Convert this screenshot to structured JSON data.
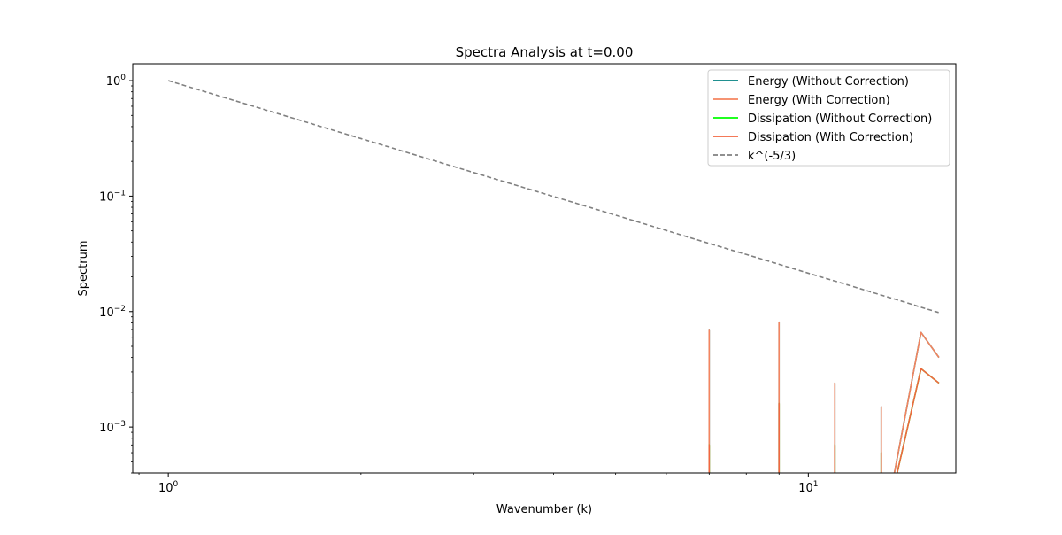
{
  "chart_data": {
    "type": "line",
    "title": "Spectra Analysis at t=0.00",
    "xlabel": "Wavenumber (k)",
    "ylabel": "Spectrum",
    "xscale": "log",
    "yscale": "log",
    "xlim": [
      0.88,
      17.0
    ],
    "ylim": [
      0.0004,
      1.4
    ],
    "xticks": [
      {
        "value": 1,
        "base": "10",
        "exp": "0"
      },
      {
        "value": 10,
        "base": "10",
        "exp": "1"
      }
    ],
    "yticks": [
      {
        "value": 1,
        "base": "10",
        "exp": "0"
      },
      {
        "value": 0.1,
        "base": "10",
        "exp": "−1"
      },
      {
        "value": 0.01,
        "base": "10",
        "exp": "−2"
      },
      {
        "value": 0.001,
        "base": "10",
        "exp": "−3"
      }
    ],
    "grid": false,
    "legend_position": "top-right",
    "series": [
      {
        "name": "Energy (Without Correction)",
        "color": "#008080",
        "dash": "solid",
        "x": [
          7,
          7,
          7,
          9,
          9,
          9,
          11,
          11,
          11,
          13,
          13,
          13,
          15,
          16
        ],
        "y": [
          0.0001,
          0.007,
          0.0001,
          0.0001,
          0.0081,
          0.0001,
          0.0001,
          0.0024,
          0.0001,
          0.0001,
          0.0015,
          0.0001,
          0.0066,
          0.004
        ]
      },
      {
        "name": "Energy (With Correction)",
        "color": "#F4845F",
        "dash": "solid",
        "x": [
          7,
          7,
          7,
          9,
          9,
          9,
          11,
          11,
          11,
          13,
          13,
          13,
          15,
          16
        ],
        "y": [
          0.0001,
          0.007,
          0.0001,
          0.0001,
          0.0081,
          0.0001,
          0.0001,
          0.0024,
          0.0001,
          0.0001,
          0.0015,
          0.0001,
          0.0066,
          0.004
        ]
      },
      {
        "name": "Dissipation (Without Correction)",
        "color": "#00FF00",
        "dash": "solid",
        "x": [
          7,
          7,
          7,
          9,
          9,
          9,
          11,
          11,
          11,
          13,
          13,
          13,
          15,
          16
        ],
        "y": [
          0.0001,
          0.0007,
          0.0001,
          0.0001,
          0.0016,
          0.0001,
          0.0001,
          0.0007,
          0.0001,
          0.0001,
          0.0006,
          0.0001,
          0.0032,
          0.0024
        ]
      },
      {
        "name": "Dissipation (With Correction)",
        "color": "#F26640",
        "dash": "solid",
        "x": [
          7,
          7,
          7,
          9,
          9,
          9,
          11,
          11,
          11,
          13,
          13,
          13,
          15,
          16
        ],
        "y": [
          0.0001,
          0.0007,
          0.0001,
          0.0001,
          0.0016,
          0.0001,
          0.0001,
          0.0007,
          0.0001,
          0.0001,
          0.0006,
          0.0001,
          0.0032,
          0.0024
        ]
      },
      {
        "name": "k^(-5/3)",
        "color": "#808080",
        "dash": "dashed",
        "x": [
          1,
          2,
          3,
          4,
          5,
          6,
          7,
          8,
          9,
          10,
          11,
          12,
          13,
          14,
          15,
          16
        ],
        "y": [
          1.0,
          0.315,
          0.16,
          0.0992,
          0.0684,
          0.0504,
          0.0389,
          0.03125,
          0.0257,
          0.0215,
          0.0184,
          0.0159,
          0.0139,
          0.0123,
          0.0109,
          0.0098
        ]
      }
    ]
  }
}
